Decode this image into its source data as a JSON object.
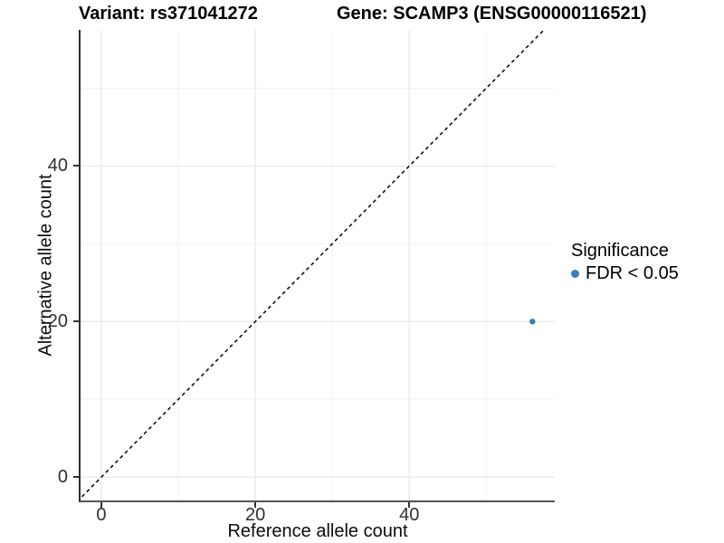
{
  "titles": {
    "variant": "Variant: rs371041272",
    "gene": "Gene: SCAMP3 (ENSG00000116521)"
  },
  "axes": {
    "x_label": "Reference allele count",
    "y_label": "Alternative allele count"
  },
  "legend": {
    "title": "Significance",
    "items": [
      {
        "label": "FDR < 0.05",
        "color": "#377EB8"
      }
    ]
  },
  "chart_data": {
    "type": "scatter",
    "title": "Variant: rs371041272 | Gene: SCAMP3 (ENSG00000116521)",
    "xlabel": "Reference allele count",
    "ylabel": "Alternative allele count",
    "xlim": [
      -2.7,
      58.9
    ],
    "ylim": [
      -3.0,
      57.5
    ],
    "x_major_ticks": [
      0,
      20,
      40
    ],
    "y_major_ticks": [
      0,
      20,
      40
    ],
    "x_minor_gridlines": [
      10,
      30,
      50
    ],
    "y_minor_gridlines": [
      10,
      30,
      50
    ],
    "grid": true,
    "legend_position": "right",
    "identity_line": {
      "style": "dashed",
      "slope": 1,
      "intercept": 0,
      "color": "#111111"
    },
    "series": [
      {
        "name": "FDR < 0.05",
        "color": "#377EB8",
        "points": [
          {
            "x": 56,
            "y": 20
          }
        ]
      }
    ]
  },
  "colors": {
    "grid_major": "#e7e7e7",
    "grid_minor": "#f3f3f3",
    "axis_text": "#303030"
  }
}
